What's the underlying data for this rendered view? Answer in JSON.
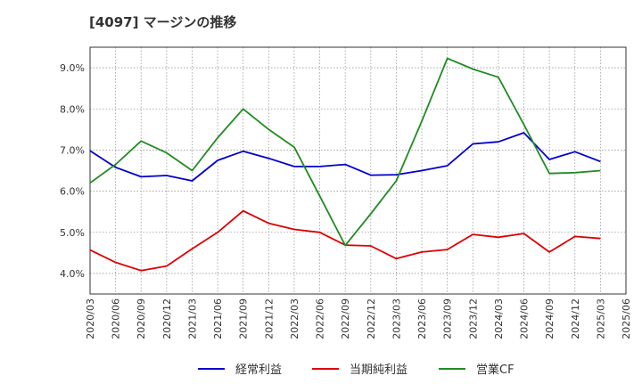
{
  "title": "[4097]  マージンの推移",
  "chart_data": {
    "type": "line",
    "x": [
      "2020/03",
      "2020/06",
      "2020/09",
      "2020/12",
      "2021/03",
      "2021/06",
      "2021/09",
      "2021/12",
      "2022/03",
      "2022/06",
      "2022/09",
      "2022/12",
      "2023/03",
      "2023/06",
      "2023/09",
      "2023/12",
      "2024/03",
      "2024/06",
      "2024/09",
      "2024/12",
      "2025/03"
    ],
    "x_ticks": [
      "2020/03",
      "2020/06",
      "2020/09",
      "2020/12",
      "2021/03",
      "2021/06",
      "2021/09",
      "2021/12",
      "2022/03",
      "2022/06",
      "2022/09",
      "2022/12",
      "2023/03",
      "2023/06",
      "2023/09",
      "2023/12",
      "2024/03",
      "2024/06",
      "2024/09",
      "2024/12",
      "2025/03",
      "2025/06"
    ],
    "y_ticks": [
      "4.0%",
      "5.0%",
      "6.0%",
      "7.0%",
      "8.0%",
      "9.0%"
    ],
    "y_tick_values": [
      4,
      5,
      6,
      7,
      8,
      9
    ],
    "ylim": [
      3.5,
      9.5
    ],
    "grid": true,
    "legend_position": "bottom",
    "series": [
      {
        "name": "経常利益",
        "color": "#0000cc",
        "values": [
          6.98,
          6.58,
          6.35,
          6.38,
          6.25,
          6.75,
          6.97,
          6.8,
          6.6,
          6.6,
          6.65,
          6.39,
          6.4,
          6.5,
          6.62,
          7.15,
          7.2,
          7.42,
          6.77,
          6.96,
          6.72
        ]
      },
      {
        "name": "当期純利益",
        "color": "#dd0000",
        "values": [
          4.57,
          4.27,
          4.07,
          4.18,
          4.6,
          5.0,
          5.52,
          5.22,
          5.07,
          5.0,
          4.69,
          4.67,
          4.36,
          4.52,
          4.58,
          4.95,
          4.88,
          4.97,
          4.52,
          4.9,
          4.85
        ]
      },
      {
        "name": "営業CF",
        "color": "#228b22",
        "values": [
          6.2,
          6.65,
          7.22,
          6.93,
          6.5,
          7.3,
          8.0,
          7.5,
          7.07,
          5.88,
          4.68,
          5.45,
          6.25,
          7.7,
          9.23,
          8.97,
          8.77,
          7.62,
          6.43,
          6.45,
          6.5
        ]
      }
    ]
  }
}
